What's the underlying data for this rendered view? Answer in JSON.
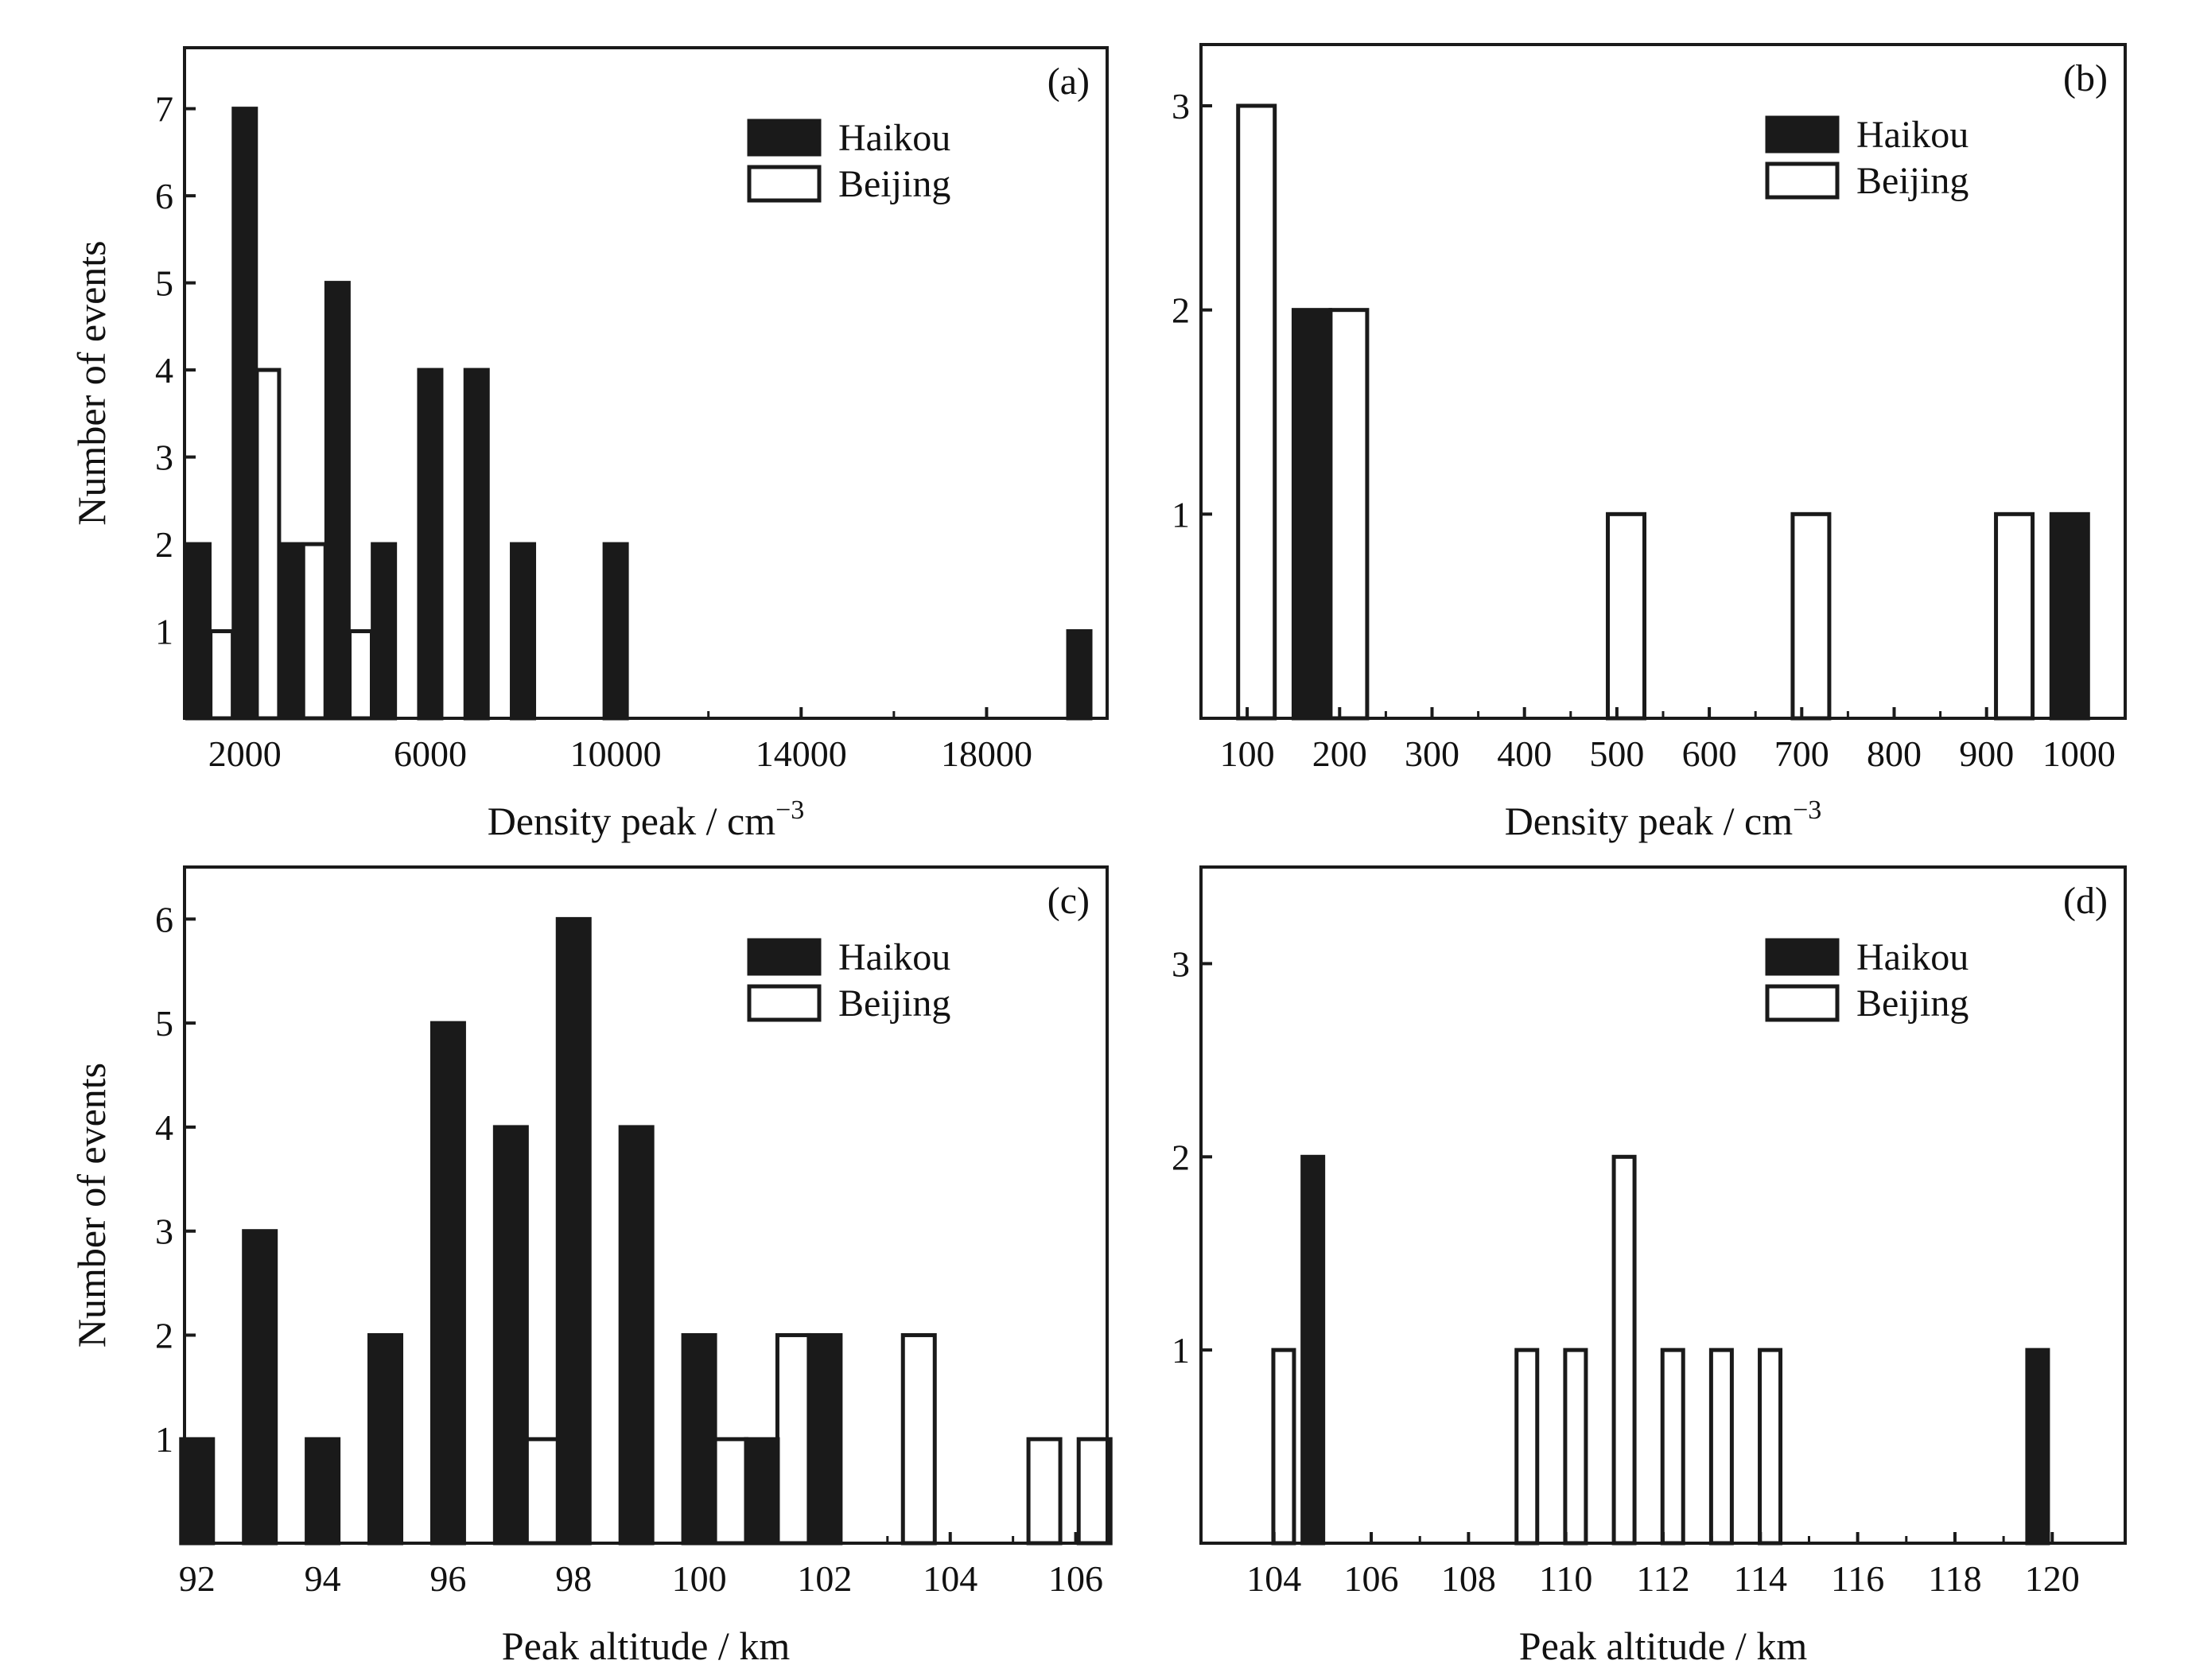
{
  "chart_data": [
    {
      "panel": "(a)",
      "type": "bar",
      "xlabel": "Density peak / cm",
      "xlabel_sup": "−3",
      "ylabel": "Number of events",
      "xlim": [
        700,
        20600
      ],
      "ylim": [
        0,
        7.7
      ],
      "xticks": [
        2000,
        6000,
        10000,
        14000,
        18000
      ],
      "yticks": [
        1,
        2,
        3,
        4,
        5,
        6,
        7
      ],
      "grid": false,
      "legend_position": "top-right",
      "series": [
        {
          "name": "Haikou",
          "color": "#1a1a1a",
          "x": [
            1000,
            2000,
            3000,
            4000,
            5000,
            6000,
            7000,
            8000,
            10000,
            20000
          ],
          "values": [
            2,
            7,
            2,
            5,
            2,
            4,
            4,
            2,
            2,
            1
          ]
        },
        {
          "name": "Beijing",
          "color": "#ffffff",
          "x": [
            1500,
            2500,
            3500,
            4500
          ],
          "values": [
            1,
            4,
            2,
            1
          ]
        }
      ]
    },
    {
      "panel": "(b)",
      "type": "bar",
      "xlabel": "Density peak / cm",
      "xlabel_sup": "−3",
      "ylabel": "",
      "xlim": [
        50,
        1050
      ],
      "ylim": [
        0,
        3.3
      ],
      "xticks": [
        100,
        200,
        300,
        400,
        500,
        600,
        700,
        800,
        900,
        1000
      ],
      "yticks": [
        1,
        2,
        3
      ],
      "grid": false,
      "legend_position": "top-right",
      "series": [
        {
          "name": "Haikou",
          "color": "#1a1a1a",
          "x": [
            170,
            990
          ],
          "values": [
            2,
            1
          ]
        },
        {
          "name": "Beijing",
          "color": "#ffffff",
          "x": [
            110,
            210,
            510,
            710,
            930
          ],
          "values": [
            3,
            2,
            1,
            1,
            1
          ]
        }
      ]
    },
    {
      "panel": "(c)",
      "type": "bar",
      "xlabel": "Peak altitude / km",
      "ylabel": "Number of events",
      "xlim": [
        91.8,
        106.5
      ],
      "ylim": [
        0,
        6.5
      ],
      "xticks": [
        92,
        94,
        96,
        98,
        100,
        102,
        104,
        106
      ],
      "yticks": [
        1,
        2,
        3,
        4,
        5,
        6
      ],
      "grid": false,
      "legend_position": "top-right",
      "series": [
        {
          "name": "Haikou",
          "color": "#1a1a1a",
          "x": [
            92,
            93,
            94,
            95,
            96,
            97,
            98,
            99,
            100,
            101,
            102
          ],
          "values": [
            1,
            3,
            1,
            2,
            5,
            4,
            6,
            4,
            2,
            1,
            2
          ]
        },
        {
          "name": "Beijing",
          "color": "#ffffff",
          "x": [
            97.5,
            100.5,
            101.5,
            103.5,
            105.5,
            106.3
          ],
          "values": [
            1,
            1,
            2,
            2,
            1,
            1
          ]
        }
      ]
    },
    {
      "panel": "(d)",
      "type": "bar",
      "xlabel": "Peak altitude / km",
      "ylabel": "",
      "xlim": [
        102.5,
        121.5
      ],
      "ylim": [
        0,
        3.5
      ],
      "xticks": [
        104,
        106,
        108,
        110,
        112,
        114,
        116,
        118,
        120
      ],
      "yticks": [
        1,
        2,
        3
      ],
      "grid": false,
      "legend_position": "top-right",
      "series": [
        {
          "name": "Haikou",
          "color": "#1a1a1a",
          "x": [
            104.8,
            119.7
          ],
          "values": [
            2,
            1
          ]
        },
        {
          "name": "Beijing",
          "color": "#ffffff",
          "x": [
            104.2,
            109.2,
            110.2,
            111.2,
            112.2,
            113.2,
            114.2
          ],
          "values": [
            1,
            1,
            1,
            2,
            1,
            1,
            1
          ]
        }
      ]
    }
  ]
}
